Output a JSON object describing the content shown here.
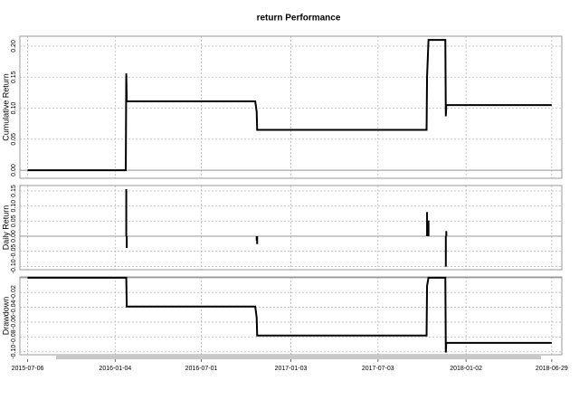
{
  "chart_data": [
    {
      "type": "line",
      "title": "return Performance",
      "ylabel": "Cumulative Return",
      "color": "#000000",
      "x": [
        "2015-07-06",
        "2016-01-26",
        "2016-01-27",
        "2016-01-28",
        "2016-10-21",
        "2016-10-24",
        "2016-10-25",
        "2017-10-12",
        "2017-10-13",
        "2017-10-16",
        "2017-11-20",
        "2017-11-21",
        "2017-11-22",
        "2018-06-29"
      ],
      "values": [
        0,
        0,
        0.156,
        0.111,
        0.111,
        0.094,
        0.065,
        0.065,
        0.15,
        0.21,
        0.21,
        0.087,
        0.105,
        0.105
      ],
      "ylim": [
        -0.013,
        0.216
      ],
      "yticks": [
        {
          "value": 0,
          "label": "0.00"
        },
        0.05,
        {
          "value": 0.1,
          "label": "0.10"
        },
        0.15,
        {
          "value": 0.2,
          "label": "0.20"
        }
      ],
      "grid": true
    },
    {
      "type": "bar",
      "ylabel": "Daily Return",
      "color": "#000000",
      "x": [
        "2016-01-27",
        "2016-01-28",
        "2016-10-24",
        "2016-10-25",
        "2017-10-13",
        "2017-10-16",
        "2017-11-21",
        "2017-11-22"
      ],
      "values": [
        0.156,
        -0.039,
        -0.015,
        -0.026,
        0.08,
        0.052,
        -0.101,
        0.017
      ],
      "ylim": [
        -0.111,
        0.168
      ],
      "yticks": [
        {
          "value": -0.1,
          "label": "-0.10"
        },
        -0.05,
        {
          "value": 0,
          "label": "0.00"
        },
        0.05,
        {
          "value": 0.1,
          "label": "0.10"
        },
        0.15
      ],
      "grid": true
    },
    {
      "type": "line",
      "ylabel": "Drawdown",
      "color": "#000000",
      "x": [
        "2015-07-06",
        "2016-01-27",
        "2016-01-28",
        "2016-10-21",
        "2016-10-24",
        "2016-10-25",
        "2017-10-12",
        "2017-10-13",
        "2017-10-16",
        "2017-11-20",
        "2017-11-21",
        "2017-11-22",
        "2018-06-29"
      ],
      "values": [
        0,
        0,
        -0.039,
        -0.039,
        -0.054,
        -0.078,
        -0.078,
        -0.011,
        0,
        0,
        -0.101,
        -0.088,
        -0.088
      ],
      "ylim": [
        -0.104,
        0.001
      ],
      "yticks": [
        -0.02,
        -0.04,
        -0.06,
        -0.08,
        {
          "value": -0.1,
          "label": "-0.10"
        }
      ],
      "xlim": [
        "2015-06-20",
        "2018-07-20"
      ],
      "xticks": [
        "2015-07-06",
        "2016-01-04",
        "2016-07-01",
        "2017-01-03",
        "2017-07-03",
        "2018-01-02",
        "2018-06-29"
      ],
      "grid": true
    }
  ]
}
